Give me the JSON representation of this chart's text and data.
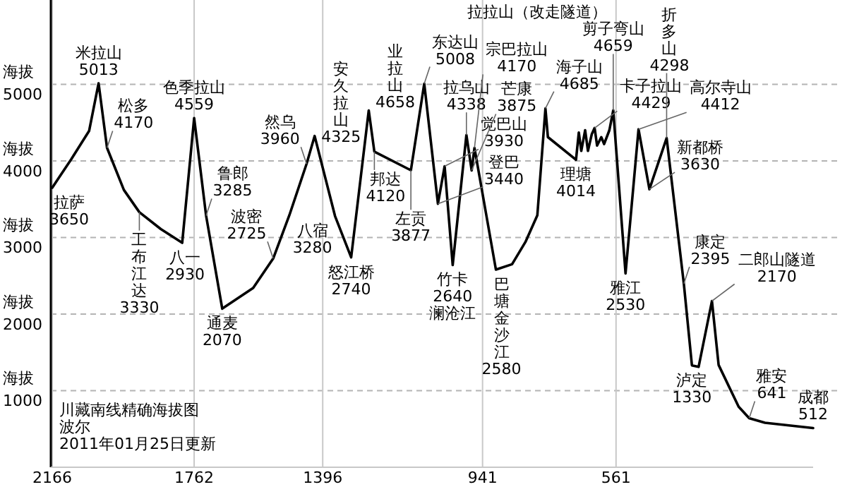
{
  "chart_data": {
    "type": "line",
    "title": "川藏南线精确海拔图",
    "x": [
      2166,
      2112,
      2061,
      2034,
      2010,
      1962,
      1918,
      1857,
      1796,
      1762,
      1728,
      1682,
      1594,
      1537,
      1491,
      1442,
      1419,
      1361,
      1315,
      1265,
      1249,
      1145,
      1107,
      1068,
      1049,
      1026,
      987,
      972,
      964,
      903,
      857,
      819,
      785,
      762,
      755,
      675,
      667,
      660,
      649,
      641,
      630,
      622,
      615,
      603,
      595,
      580,
      569,
      534,
      497,
      466,
      417,
      368,
      345,
      326,
      288,
      269,
      212,
      182,
      137,
      0
    ],
    "series": [
      {
        "color": "#000000",
        "values": [
          3650,
          4020,
          4390,
          5013,
          4170,
          3620,
          3330,
          3110,
          2930,
          4559,
          3285,
          2070,
          2340,
          2725,
          3290,
          3960,
          4325,
          3280,
          2740,
          4658,
          4120,
          3877,
          5008,
          3440,
          3930,
          2640,
          4338,
          3875,
          4170,
          2580,
          2650,
          2940,
          3290,
          4685,
          4310,
          4014,
          4370,
          4130,
          4400,
          4130,
          4350,
          4429,
          4200,
          4310,
          4220,
          4400,
          4659,
          2530,
          4412,
          3630,
          4298,
          2395,
          1330,
          1310,
          2170,
          1335,
          790,
          641,
          580,
          512
        ]
      }
    ],
    "xlim": [
      2170,
      0
    ],
    "xticks": [
      2166,
      1762,
      1396,
      941,
      561
    ],
    "ylim": [
      0,
      6100
    ],
    "yticks": [
      1000,
      2000,
      3000,
      4000,
      5000
    ],
    "ylabel": "海拔",
    "grid": true,
    "annotations": [
      {
        "text": "拉萨\n3650",
        "x": 2166,
        "y": 3650
      },
      {
        "text": "米拉山\n5013",
        "x": 2034,
        "y": 5013
      },
      {
        "text": "松多\n4170",
        "x": 2010,
        "y": 4170
      },
      {
        "text": "工布江达\n3330",
        "x": 1918,
        "y": 3330
      },
      {
        "text": "八一\n2930",
        "x": 1796,
        "y": 2930
      },
      {
        "text": "色季拉山\n4559",
        "x": 1762,
        "y": 4559
      },
      {
        "text": "鲁郎\n3285",
        "x": 1728,
        "y": 3285
      },
      {
        "text": "通麦\n2070",
        "x": 1682,
        "y": 2070
      },
      {
        "text": "波密\n2725",
        "x": 1537,
        "y": 2725
      },
      {
        "text": "然乌\n3960",
        "x": 1442,
        "y": 3960
      },
      {
        "text": "安久拉山\n4325",
        "x": 1419,
        "y": 4325
      },
      {
        "text": "八宿\n3280",
        "x": 1361,
        "y": 3280
      },
      {
        "text": "怒江桥\n2740",
        "x": 1315,
        "y": 2740
      },
      {
        "text": "业拉山\n4658",
        "x": 1265,
        "y": 4658
      },
      {
        "text": "邦达\n4120",
        "x": 1249,
        "y": 4120
      },
      {
        "text": "左贡\n3877",
        "x": 1145,
        "y": 3877
      },
      {
        "text": "东达山\n5008",
        "x": 1107,
        "y": 5008
      },
      {
        "text": "登巴\n3440",
        "x": 1068,
        "y": 3440
      },
      {
        "text": "觉巴山\n3930",
        "x": 1049,
        "y": 3930
      },
      {
        "text": "竹卡\n2640\n澜沧江",
        "x": 1026,
        "y": 2640
      },
      {
        "text": "拉乌山\n4338",
        "x": 987,
        "y": 4338
      },
      {
        "text": "芒康\n3875",
        "x": 972,
        "y": 3875
      },
      {
        "text": "宗巴拉山\n4170",
        "x": 964,
        "y": 4170
      },
      {
        "text": "巴塘金沙江\n2580",
        "x": 903,
        "y": 2580
      },
      {
        "text": "海子山\n4685",
        "x": 762,
        "y": 4685
      },
      {
        "text": "理塘\n4014",
        "x": 675,
        "y": 4014
      },
      {
        "text": "卡子拉山\n4429",
        "x": 622,
        "y": 4429
      },
      {
        "text": "剪子弯山\n4659",
        "x": 569,
        "y": 4659
      },
      {
        "text": "雅江\n2530",
        "x": 534,
        "y": 2530
      },
      {
        "text": "高尔寺山\n4412",
        "x": 497,
        "y": 4412
      },
      {
        "text": "新都桥\n3630",
        "x": 466,
        "y": 3630
      },
      {
        "text": "折多山\n4298",
        "x": 417,
        "y": 4298
      },
      {
        "text": "康定\n2395",
        "x": 368,
        "y": 2395
      },
      {
        "text": "泸定\n1330",
        "x": 345,
        "y": 1330
      },
      {
        "text": "二郎山隧道\n2170",
        "x": 288,
        "y": 2170
      },
      {
        "text": "雅安\n641",
        "x": 182,
        "y": 641
      },
      {
        "text": "成都\n512",
        "x": 0,
        "y": 512
      },
      "拉拉山（改走隧道）",
      "波尔",
      "2011年01月25日更新"
    ]
  }
}
